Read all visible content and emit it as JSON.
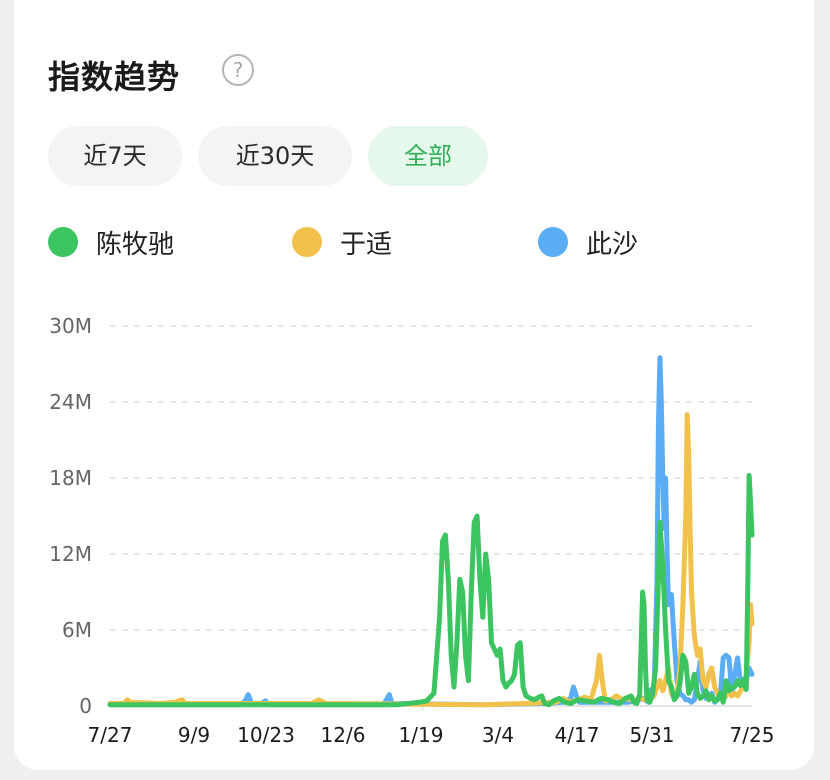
{
  "header": {
    "title": "指数趋势",
    "help_icon": "?"
  },
  "tabs": [
    {
      "label": "近7天",
      "active": false
    },
    {
      "label": "近30天",
      "active": false
    },
    {
      "label": "全部",
      "active": true
    }
  ],
  "colors": {
    "accent": "#2fb15a",
    "series_green": "#3cc461",
    "series_yellow": "#f2c14b",
    "series_blue": "#5aadf5"
  },
  "chart_data": {
    "type": "line",
    "title": "",
    "xlabel": "",
    "ylabel": "",
    "ylim": [
      0,
      30000000
    ],
    "yticks": [
      0,
      6000000,
      12000000,
      18000000,
      24000000,
      30000000
    ],
    "ytick_labels": [
      "0",
      "6M",
      "12M",
      "18M",
      "24M",
      "30M"
    ],
    "xticks": [
      "7/27",
      "9/9",
      "10/23",
      "12/6",
      "1/19",
      "3/4",
      "4/17",
      "5/31",
      "7/25"
    ],
    "grid": "horizontal dashed",
    "legend": "top",
    "series": [
      {
        "name": "陈牧驰",
        "color": "#3cc461",
        "points": [
          [
            0,
            0.1
          ],
          [
            200,
            0.1
          ],
          [
            215,
            0.3
          ],
          [
            220,
            0.4
          ],
          [
            225,
            1
          ],
          [
            229,
            7
          ],
          [
            231,
            13
          ],
          [
            233,
            13.5
          ],
          [
            235,
            10
          ],
          [
            237,
            4
          ],
          [
            239,
            1.5
          ],
          [
            241,
            5
          ],
          [
            243,
            10
          ],
          [
            245,
            9
          ],
          [
            247,
            4
          ],
          [
            249,
            2
          ],
          [
            251,
            9
          ],
          [
            253,
            14.5
          ],
          [
            255,
            15
          ],
          [
            257,
            10
          ],
          [
            259,
            7
          ],
          [
            261,
            12
          ],
          [
            263,
            10
          ],
          [
            265,
            5
          ],
          [
            267,
            4.5
          ],
          [
            269,
            4
          ],
          [
            271,
            4.5
          ],
          [
            273,
            2
          ],
          [
            275,
            1.5
          ],
          [
            277,
            1.8
          ],
          [
            279,
            2
          ],
          [
            281,
            2.5
          ],
          [
            283,
            4.8
          ],
          [
            285,
            5
          ],
          [
            287,
            1.5
          ],
          [
            289,
            0.8
          ],
          [
            292,
            0.6
          ],
          [
            295,
            0.5
          ],
          [
            298,
            0.7
          ],
          [
            300,
            0.8
          ],
          [
            302,
            0.2
          ],
          [
            305,
            0.1
          ],
          [
            308,
            0.4
          ],
          [
            312,
            0.6
          ],
          [
            316,
            0.3
          ],
          [
            320,
            0.2
          ],
          [
            325,
            0.5
          ],
          [
            330,
            0.4
          ],
          [
            336,
            0.3
          ],
          [
            341,
            0.6
          ],
          [
            346,
            0.5
          ],
          [
            350,
            0.3
          ],
          [
            354,
            0.2
          ],
          [
            358,
            0.6
          ],
          [
            362,
            0.8
          ],
          [
            364,
            0.3
          ],
          [
            366,
            0.2
          ],
          [
            368,
            0.9
          ],
          [
            369,
            5
          ],
          [
            370,
            9
          ],
          [
            371,
            8
          ],
          [
            372,
            3
          ],
          [
            373,
            0.5
          ],
          [
            375,
            0.3
          ],
          [
            377,
            1
          ],
          [
            379,
            3
          ],
          [
            381,
            10
          ],
          [
            382,
            14.5
          ],
          [
            384,
            11
          ],
          [
            386,
            6
          ],
          [
            388,
            2
          ],
          [
            390,
            1.5
          ],
          [
            392,
            0.5
          ],
          [
            394,
            0.8
          ],
          [
            396,
            1.8
          ],
          [
            398,
            4
          ],
          [
            400,
            3.5
          ],
          [
            402,
            1
          ],
          [
            404,
            1.5
          ],
          [
            406,
            2.5
          ],
          [
            408,
            1
          ],
          [
            410,
            0.6
          ],
          [
            412,
            0.8
          ],
          [
            414,
            1.2
          ],
          [
            416,
            0.5
          ],
          [
            418,
            0.8
          ],
          [
            420,
            0.4
          ],
          [
            422,
            0.5
          ],
          [
            424,
            1
          ],
          [
            426,
            0.3
          ],
          [
            428,
            2
          ],
          [
            430,
            1.2
          ],
          [
            432,
            1.5
          ],
          [
            434,
            1.5
          ],
          [
            436,
            2
          ],
          [
            438,
            1.6
          ],
          [
            440,
            2.1
          ],
          [
            442,
            1.3
          ],
          [
            443,
            9
          ],
          [
            444,
            18.2
          ],
          [
            445,
            16
          ],
          [
            446,
            13.5
          ]
        ]
      },
      {
        "name": "于适",
        "color": "#f2c14b",
        "points": [
          [
            0,
            0.2
          ],
          [
            10,
            0.2
          ],
          [
            12,
            0.5
          ],
          [
            14,
            0.3
          ],
          [
            35,
            0.2
          ],
          [
            45,
            0.3
          ],
          [
            50,
            0.5
          ],
          [
            52,
            0.2
          ],
          [
            140,
            0.2
          ],
          [
            145,
            0.5
          ],
          [
            150,
            0.2
          ],
          [
            260,
            0.1
          ],
          [
            290,
            0.2
          ],
          [
            310,
            0.3
          ],
          [
            315,
            0.6
          ],
          [
            320,
            0.3
          ],
          [
            325,
            0.5
          ],
          [
            330,
            0.7
          ],
          [
            334,
            0.5
          ],
          [
            338,
            2
          ],
          [
            340,
            4
          ],
          [
            342,
            2
          ],
          [
            344,
            0.4
          ],
          [
            348,
            0.5
          ],
          [
            352,
            0.8
          ],
          [
            356,
            0.5
          ],
          [
            360,
            0.6
          ],
          [
            364,
            0.4
          ],
          [
            368,
            0.6
          ],
          [
            372,
            0.5
          ],
          [
            376,
            0.6
          ],
          [
            378,
            0.8
          ],
          [
            380,
            1.5
          ],
          [
            382,
            2
          ],
          [
            384,
            1.2
          ],
          [
            386,
            2
          ],
          [
            388,
            3
          ],
          [
            390,
            1
          ],
          [
            392,
            0.6
          ],
          [
            394,
            1
          ],
          [
            396,
            3
          ],
          [
            398,
            8
          ],
          [
            400,
            15
          ],
          [
            401,
            23
          ],
          [
            402,
            20
          ],
          [
            403,
            14
          ],
          [
            404,
            9
          ],
          [
            406,
            5.5
          ],
          [
            408,
            4
          ],
          [
            410,
            4.5
          ],
          [
            412,
            2
          ],
          [
            414,
            1.5
          ],
          [
            416,
            2.5
          ],
          [
            418,
            3
          ],
          [
            420,
            1.5
          ],
          [
            422,
            1
          ],
          [
            424,
            0.6
          ],
          [
            426,
            0.5
          ],
          [
            428,
            0.8
          ],
          [
            430,
            1.2
          ],
          [
            432,
            0.8
          ],
          [
            434,
            1
          ],
          [
            436,
            0.8
          ],
          [
            438,
            1.2
          ],
          [
            440,
            1.5
          ],
          [
            442,
            2.5
          ],
          [
            443,
            4
          ],
          [
            444,
            5
          ],
          [
            445,
            8
          ],
          [
            446,
            6.5
          ]
        ]
      },
      {
        "name": "此沙",
        "color": "#5aadf5",
        "points": [
          [
            0,
            0.1
          ],
          [
            90,
            0.1
          ],
          [
            94,
            0.4
          ],
          [
            96,
            0.9
          ],
          [
            98,
            0.3
          ],
          [
            100,
            0.1
          ],
          [
            105,
            0.2
          ],
          [
            108,
            0.4
          ],
          [
            110,
            0.1
          ],
          [
            190,
            0.1
          ],
          [
            192,
            0.5
          ],
          [
            194,
            0.9
          ],
          [
            196,
            0.2
          ],
          [
            260,
            0.1
          ],
          [
            300,
            0.2
          ],
          [
            315,
            0.3
          ],
          [
            320,
            0.6
          ],
          [
            322,
            1.5
          ],
          [
            324,
            0.8
          ],
          [
            326,
            0.3
          ],
          [
            360,
            0.3
          ],
          [
            366,
            0.4
          ],
          [
            370,
            0.6
          ],
          [
            374,
            0.3
          ],
          [
            376,
            1.3
          ],
          [
            378,
            1.2
          ],
          [
            380,
            10
          ],
          [
            381,
            22
          ],
          [
            382,
            27.5
          ],
          [
            383,
            24
          ],
          [
            384,
            18
          ],
          [
            385,
            14
          ],
          [
            386,
            18
          ],
          [
            387,
            12
          ],
          [
            388,
            8
          ],
          [
            390,
            8.8
          ],
          [
            392,
            5
          ],
          [
            394,
            2
          ],
          [
            396,
            1
          ],
          [
            398,
            0.8
          ],
          [
            400,
            0.5
          ],
          [
            402,
            0.5
          ],
          [
            404,
            0.3
          ],
          [
            406,
            0.5
          ],
          [
            408,
            2
          ],
          [
            410,
            3.5
          ],
          [
            412,
            1.2
          ],
          [
            414,
            0.6
          ],
          [
            416,
            0.8
          ],
          [
            418,
            1
          ],
          [
            420,
            0.3
          ],
          [
            422,
            0.5
          ],
          [
            424,
            0.8
          ],
          [
            426,
            3.8
          ],
          [
            428,
            4
          ],
          [
            430,
            3.8
          ],
          [
            432,
            1
          ],
          [
            434,
            2.5
          ],
          [
            436,
            3.8
          ],
          [
            438,
            1.8
          ],
          [
            440,
            1.5
          ],
          [
            442,
            2
          ],
          [
            444,
            3
          ],
          [
            446,
            2.5
          ]
        ]
      }
    ]
  }
}
